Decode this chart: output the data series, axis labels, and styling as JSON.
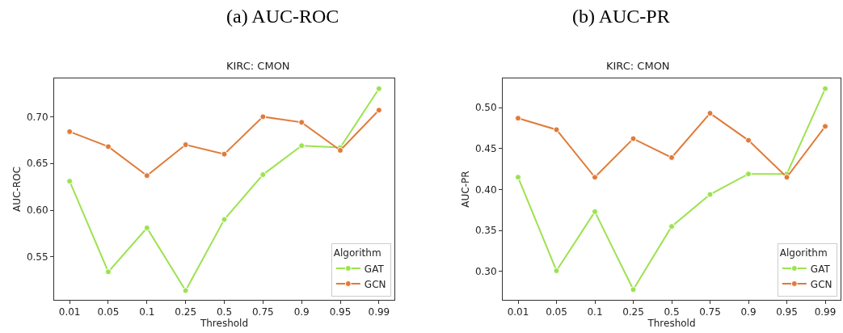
{
  "chart_data": [
    {
      "type": "line",
      "subtitle": "(a) AUC-ROC",
      "title": "KIRC: CMON",
      "xlabel": "Threshold",
      "ylabel": "AUC-ROC",
      "legend_title": "Algorithm",
      "legend": "bottom right",
      "marker": "circle",
      "line_style": "solid",
      "categories": [
        "0.01",
        "0.05",
        "0.1",
        "0.25",
        "0.5",
        "0.75",
        "0.9",
        "0.95",
        "0.99"
      ],
      "ylim": [
        0.504,
        0.741
      ],
      "yticks": [
        {
          "value": 0.55,
          "label": "0.55"
        },
        {
          "value": 0.6,
          "label": "0.60"
        },
        {
          "value": 0.65,
          "label": "0.65"
        },
        {
          "value": 0.7,
          "label": "0.70"
        }
      ],
      "series": [
        {
          "name": "GAT",
          "color": "#9de24f",
          "values": [
            0.631,
            0.534,
            0.581,
            0.514,
            0.59,
            0.638,
            0.669,
            0.667,
            0.73
          ]
        },
        {
          "name": "GCN",
          "color": "#e07b39",
          "values": [
            0.684,
            0.668,
            0.637,
            0.67,
            0.66,
            0.7,
            0.694,
            0.664,
            0.707
          ]
        }
      ]
    },
    {
      "type": "line",
      "subtitle": "(b) AUC-PR",
      "title": "KIRC: CMON",
      "xlabel": "Threshold",
      "ylabel": "AUC-PR",
      "legend_title": "Algorithm",
      "legend": "bottom right",
      "marker": "circle",
      "line_style": "solid",
      "categories": [
        "0.01",
        "0.05",
        "0.1",
        "0.25",
        "0.5",
        "0.75",
        "0.9",
        "0.95",
        "0.99"
      ],
      "ylim": [
        0.2655,
        0.5355
      ],
      "yticks": [
        {
          "value": 0.3,
          "label": "0.30"
        },
        {
          "value": 0.35,
          "label": "0.35"
        },
        {
          "value": 0.4,
          "label": "0.40"
        },
        {
          "value": 0.45,
          "label": "0.45"
        },
        {
          "value": 0.5,
          "label": "0.50"
        }
      ],
      "series": [
        {
          "name": "GAT",
          "color": "#9de24f",
          "values": [
            0.415,
            0.301,
            0.373,
            0.278,
            0.355,
            0.394,
            0.419,
            0.419,
            0.523
          ]
        },
        {
          "name": "GCN",
          "color": "#e07b39",
          "values": [
            0.487,
            0.473,
            0.415,
            0.462,
            0.439,
            0.493,
            0.46,
            0.415,
            0.477
          ]
        }
      ]
    }
  ]
}
